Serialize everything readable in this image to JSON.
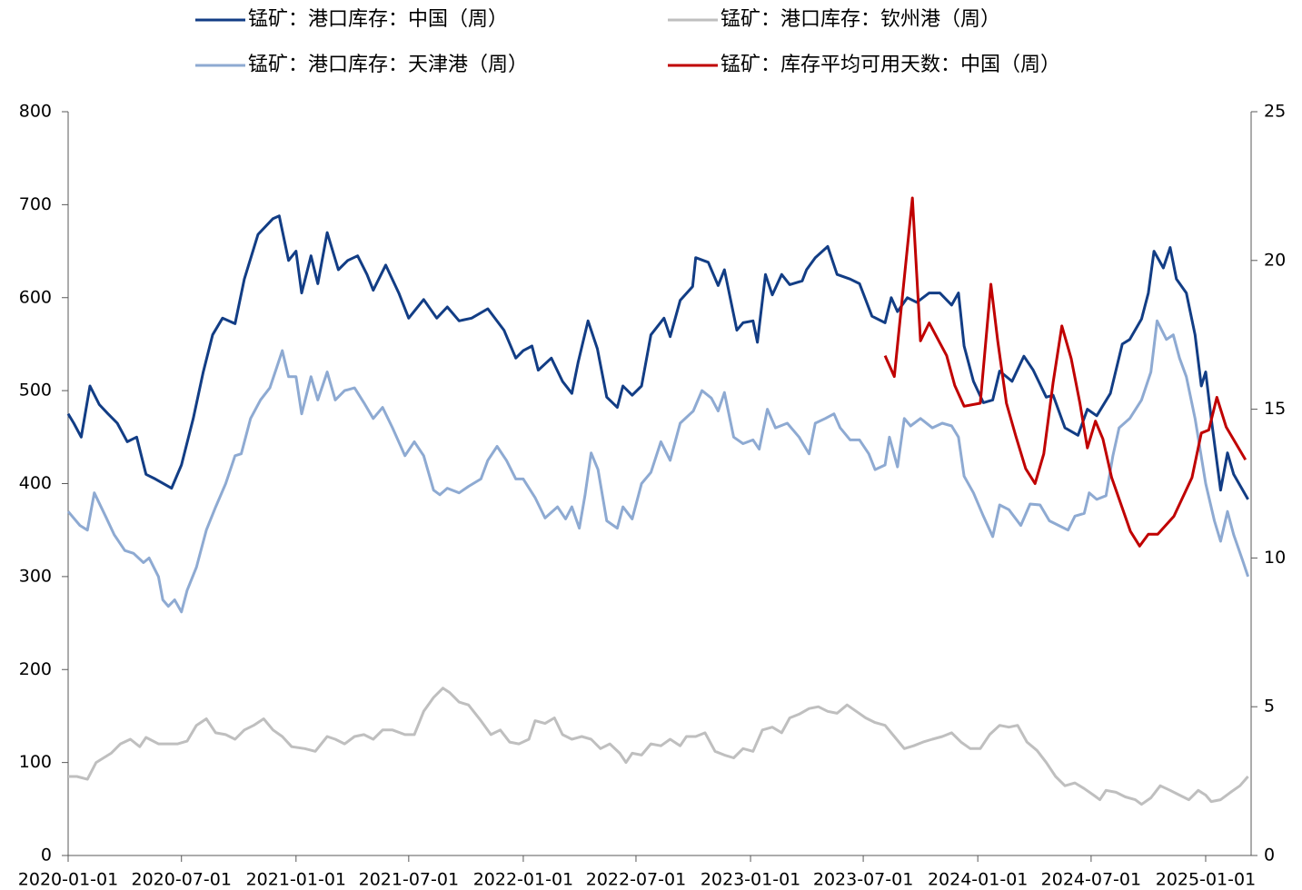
{
  "chart_data": {
    "type": "line",
    "xlim": [
      "2020-01-01",
      "2025-03-15"
    ],
    "xticks": [
      "2020-01-01",
      "2020-07-01",
      "2021-01-01",
      "2021-07-01",
      "2022-01-01",
      "2022-07-01",
      "2023-01-01",
      "2023-07-01",
      "2024-01-01",
      "2024-07-01",
      "2025-01-01"
    ],
    "ylim": [
      0,
      800
    ],
    "yticks": [
      0,
      100,
      200,
      300,
      400,
      500,
      600,
      700,
      800
    ],
    "y2lim": [
      0,
      25
    ],
    "y2ticks": [
      0,
      5,
      10,
      15,
      20,
      25
    ],
    "series": [
      {
        "name": "锰矿：港口库存：中国（周）",
        "color": "#123d85",
        "x": [
          "2020-01-01",
          "2020-01-10",
          "2020-01-22",
          "2020-02-05",
          "2020-02-20",
          "2020-03-05",
          "2020-03-20",
          "2020-04-05",
          "2020-04-20",
          "2020-05-05",
          "2020-05-20",
          "2020-06-15",
          "2020-07-01",
          "2020-07-20",
          "2020-08-05",
          "2020-08-20",
          "2020-09-05",
          "2020-09-25",
          "2020-10-10",
          "2020-11-01",
          "2020-11-25",
          "2020-12-05",
          "2020-12-20",
          "2021-01-01",
          "2021-01-10",
          "2021-01-25",
          "2021-02-05",
          "2021-02-20",
          "2021-03-10",
          "2021-03-25",
          "2021-04-10",
          "2021-04-25",
          "2021-05-05",
          "2021-05-25",
          "2021-06-15",
          "2021-07-01",
          "2021-07-25",
          "2021-08-15",
          "2021-09-01",
          "2021-09-20",
          "2021-10-10",
          "2021-11-05",
          "2021-12-01",
          "2021-12-20",
          "2022-01-01",
          "2022-01-15",
          "2022-01-25",
          "2022-02-15",
          "2022-03-05",
          "2022-03-20",
          "2022-03-30",
          "2022-04-15",
          "2022-04-30",
          "2022-05-15",
          "2022-06-01",
          "2022-06-10",
          "2022-06-25",
          "2022-07-10",
          "2022-07-25",
          "2022-08-15",
          "2022-08-25",
          "2022-09-10",
          "2022-09-30",
          "2022-10-05",
          "2022-10-25",
          "2022-11-10",
          "2022-11-20",
          "2022-12-10",
          "2022-12-20",
          "2023-01-05",
          "2023-01-12",
          "2023-01-25",
          "2023-02-05",
          "2023-02-20",
          "2023-03-05",
          "2023-03-25",
          "2023-04-01",
          "2023-04-15",
          "2023-05-05",
          "2023-05-20",
          "2023-06-10",
          "2023-06-25",
          "2023-07-15",
          "2023-08-05",
          "2023-08-15",
          "2023-08-25",
          "2023-09-10",
          "2023-09-25",
          "2023-10-15",
          "2023-11-01",
          "2023-11-20",
          "2023-12-01",
          "2023-12-10",
          "2023-12-25",
          "2024-01-10",
          "2024-01-25",
          "2024-02-05",
          "2024-02-25",
          "2024-03-15",
          "2024-03-30",
          "2024-04-20",
          "2024-05-01",
          "2024-05-20",
          "2024-06-10",
          "2024-06-25",
          "2024-07-10",
          "2024-08-01",
          "2024-08-20",
          "2024-09-01",
          "2024-09-20",
          "2024-10-01",
          "2024-10-10",
          "2024-10-25",
          "2024-11-05",
          "2024-11-15",
          "2024-12-01",
          "2024-12-15",
          "2024-12-25",
          "2025-01-01",
          "2025-01-10",
          "2025-01-25",
          "2025-02-05",
          "2025-02-15",
          "2025-03-10"
        ],
        "values": [
          475,
          465,
          450,
          505,
          485,
          475,
          465,
          445,
          450,
          410,
          405,
          395,
          420,
          470,
          520,
          560,
          578,
          572,
          620,
          668,
          685,
          688,
          640,
          650,
          605,
          645,
          615,
          670,
          630,
          640,
          645,
          625,
          608,
          635,
          605,
          578,
          598,
          578,
          590,
          575,
          578,
          588,
          565,
          535,
          543,
          548,
          522,
          535,
          510,
          497,
          530,
          575,
          545,
          493,
          482,
          505,
          495,
          505,
          560,
          578,
          558,
          597,
          612,
          643,
          638,
          613,
          630,
          565,
          573,
          575,
          552,
          625,
          603,
          625,
          614,
          618,
          630,
          643,
          655,
          625,
          620,
          615,
          580,
          573,
          600,
          585,
          600,
          595,
          605,
          605,
          592,
          605,
          548,
          510,
          487,
          490,
          521,
          510,
          537,
          522,
          493,
          495,
          460,
          452,
          480,
          473,
          497,
          550,
          555,
          577,
          605,
          650,
          632,
          654,
          620,
          605,
          560,
          505,
          520,
          470,
          393,
          433,
          410,
          383
        ]
      },
      {
        "name": "锰矿：港口库存：钦州港（周）",
        "color": "#bfbfbf",
        "x": [
          "2020-01-01",
          "2020-01-15",
          "2020-02-01",
          "2020-02-15",
          "2020-03-10",
          "2020-03-25",
          "2020-04-10",
          "2020-04-25",
          "2020-05-05",
          "2020-05-25",
          "2020-06-10",
          "2020-06-25",
          "2020-07-10",
          "2020-07-25",
          "2020-08-10",
          "2020-08-25",
          "2020-09-10",
          "2020-09-25",
          "2020-10-10",
          "2020-10-25",
          "2020-11-10",
          "2020-11-25",
          "2020-12-10",
          "2020-12-25",
          "2021-01-15",
          "2021-02-01",
          "2021-02-20",
          "2021-03-05",
          "2021-03-20",
          "2021-04-05",
          "2021-04-20",
          "2021-05-05",
          "2021-05-20",
          "2021-06-05",
          "2021-06-25",
          "2021-07-10",
          "2021-07-25",
          "2021-08-10",
          "2021-08-25",
          "2021-09-05",
          "2021-09-20",
          "2021-10-05",
          "2021-10-25",
          "2021-11-10",
          "2021-11-25",
          "2021-12-10",
          "2021-12-25",
          "2022-01-10",
          "2022-01-20",
          "2022-02-05",
          "2022-02-20",
          "2022-03-05",
          "2022-03-20",
          "2022-04-05",
          "2022-04-20",
          "2022-05-05",
          "2022-05-20",
          "2022-06-05",
          "2022-06-15",
          "2022-06-25",
          "2022-07-10",
          "2022-07-25",
          "2022-08-10",
          "2022-08-25",
          "2022-09-10",
          "2022-09-20",
          "2022-10-05",
          "2022-10-20",
          "2022-11-05",
          "2022-11-20",
          "2022-12-05",
          "2022-12-20",
          "2023-01-05",
          "2023-01-20",
          "2023-02-05",
          "2023-02-20",
          "2023-03-05",
          "2023-03-20",
          "2023-04-05",
          "2023-04-20",
          "2023-05-05",
          "2023-05-20",
          "2023-06-05",
          "2023-06-20",
          "2023-07-05",
          "2023-07-20",
          "2023-08-05",
          "2023-08-20",
          "2023-09-05",
          "2023-09-20",
          "2023-10-05",
          "2023-10-20",
          "2023-11-05",
          "2023-11-20",
          "2023-12-05",
          "2023-12-20",
          "2024-01-05",
          "2024-01-20",
          "2024-02-05",
          "2024-02-20",
          "2024-03-05",
          "2024-03-20",
          "2024-04-05",
          "2024-04-20",
          "2024-05-05",
          "2024-05-20",
          "2024-06-05",
          "2024-06-20",
          "2024-07-05",
          "2024-07-15",
          "2024-07-25",
          "2024-08-10",
          "2024-08-25",
          "2024-09-10",
          "2024-09-20",
          "2024-10-05",
          "2024-10-20",
          "2024-11-05",
          "2024-11-20",
          "2024-12-05",
          "2024-12-20",
          "2025-01-01",
          "2025-01-10",
          "2025-01-25",
          "2025-02-10",
          "2025-02-25",
          "2025-03-10"
        ],
        "values": [
          85,
          85,
          82,
          100,
          110,
          120,
          125,
          117,
          127,
          120,
          120,
          120,
          123,
          140,
          147,
          132,
          130,
          125,
          135,
          140,
          147,
          135,
          128,
          117,
          115,
          112,
          128,
          125,
          120,
          128,
          130,
          125,
          135,
          135,
          130,
          130,
          155,
          170,
          180,
          175,
          165,
          162,
          145,
          130,
          135,
          122,
          120,
          125,
          145,
          142,
          148,
          130,
          125,
          128,
          125,
          115,
          120,
          110,
          100,
          110,
          108,
          120,
          118,
          125,
          118,
          128,
          128,
          132,
          112,
          108,
          105,
          115,
          112,
          135,
          138,
          132,
          148,
          152,
          158,
          160,
          155,
          153,
          162,
          155,
          148,
          143,
          140,
          128,
          115,
          118,
          122,
          125,
          128,
          132,
          122,
          115,
          115,
          130,
          140,
          138,
          140,
          122,
          113,
          100,
          85,
          75,
          78,
          72,
          65,
          60,
          70,
          68,
          63,
          60,
          55,
          62,
          75,
          70,
          65,
          60,
          70,
          65,
          58,
          60,
          68,
          75,
          85
        ]
      },
      {
        "name": "锰矿：港口库存：天津港（周）",
        "color": "#8eaad2",
        "x": [
          "2020-01-01",
          "2020-01-20",
          "2020-02-01",
          "2020-02-12",
          "2020-03-01",
          "2020-03-15",
          "2020-04-01",
          "2020-04-15",
          "2020-05-01",
          "2020-05-10",
          "2020-05-25",
          "2020-06-01",
          "2020-06-10",
          "2020-06-20",
          "2020-07-01",
          "2020-07-10",
          "2020-07-25",
          "2020-08-10",
          "2020-08-25",
          "2020-09-10",
          "2020-09-25",
          "2020-10-05",
          "2020-10-20",
          "2020-11-05",
          "2020-11-20",
          "2020-12-01",
          "2020-12-10",
          "2020-12-20",
          "2021-01-01",
          "2021-01-10",
          "2021-01-25",
          "2021-02-05",
          "2021-02-20",
          "2021-03-05",
          "2021-03-20",
          "2021-04-05",
          "2021-04-20",
          "2021-05-05",
          "2021-05-20",
          "2021-06-05",
          "2021-06-25",
          "2021-07-10",
          "2021-07-25",
          "2021-08-10",
          "2021-08-20",
          "2021-09-01",
          "2021-09-20",
          "2021-10-05",
          "2021-10-25",
          "2021-11-05",
          "2021-11-20",
          "2021-12-05",
          "2021-12-20",
          "2022-01-01",
          "2022-01-20",
          "2022-02-05",
          "2022-02-25",
          "2022-03-10",
          "2022-03-20",
          "2022-04-01",
          "2022-04-10",
          "2022-04-20",
          "2022-05-01",
          "2022-05-15",
          "2022-06-01",
          "2022-06-10",
          "2022-06-25",
          "2022-07-10",
          "2022-07-25",
          "2022-08-10",
          "2022-08-25",
          "2022-09-10",
          "2022-10-01",
          "2022-10-15",
          "2022-10-30",
          "2022-11-10",
          "2022-11-20",
          "2022-12-05",
          "2022-12-20",
          "2023-01-05",
          "2023-01-15",
          "2023-01-28",
          "2023-02-10",
          "2023-03-01",
          "2023-03-20",
          "2023-04-05",
          "2023-04-15",
          "2023-05-01",
          "2023-05-15",
          "2023-05-25",
          "2023-06-10",
          "2023-06-25",
          "2023-07-10",
          "2023-07-20",
          "2023-08-05",
          "2023-08-12",
          "2023-08-25",
          "2023-09-05",
          "2023-09-15",
          "2023-10-01",
          "2023-10-20",
          "2023-11-05",
          "2023-11-20",
          "2023-12-01",
          "2023-12-10",
          "2023-12-25",
          "2024-01-10",
          "2024-01-25",
          "2024-02-05",
          "2024-02-20",
          "2024-03-10",
          "2024-03-25",
          "2024-04-10",
          "2024-04-25",
          "2024-05-10",
          "2024-05-25",
          "2024-06-05",
          "2024-06-20",
          "2024-06-28",
          "2024-07-10",
          "2024-07-25",
          "2024-08-05",
          "2024-08-15",
          "2024-09-01",
          "2024-09-20",
          "2024-10-05",
          "2024-10-15",
          "2024-10-30",
          "2024-11-10",
          "2024-11-20",
          "2024-12-01",
          "2024-12-15",
          "2025-01-01",
          "2025-01-15",
          "2025-01-25",
          "2025-02-05",
          "2025-02-15",
          "2025-03-01",
          "2025-03-10"
        ],
        "values": [
          370,
          355,
          350,
          390,
          365,
          345,
          328,
          325,
          315,
          320,
          300,
          275,
          268,
          275,
          262,
          285,
          310,
          350,
          375,
          400,
          430,
          432,
          470,
          490,
          503,
          525,
          543,
          515,
          515,
          475,
          515,
          490,
          520,
          490,
          500,
          503,
          487,
          470,
          482,
          460,
          430,
          445,
          430,
          393,
          388,
          395,
          390,
          397,
          405,
          425,
          440,
          425,
          405,
          405,
          385,
          363,
          375,
          362,
          375,
          352,
          387,
          433,
          415,
          360,
          352,
          375,
          362,
          400,
          412,
          445,
          425,
          465,
          478,
          500,
          492,
          478,
          498,
          450,
          443,
          447,
          437,
          480,
          460,
          465,
          450,
          432,
          465,
          470,
          475,
          460,
          447,
          447,
          432,
          415,
          420,
          450,
          418,
          470,
          462,
          470,
          460,
          465,
          462,
          450,
          408,
          390,
          365,
          343,
          377,
          372,
          355,
          378,
          377,
          360,
          355,
          350,
          365,
          368,
          390,
          383,
          387,
          430,
          460,
          470,
          490,
          520,
          575,
          555,
          560,
          535,
          515,
          470,
          400,
          360,
          338,
          370,
          345,
          318,
          300
        ]
      },
      {
        "name": "锰矿：库存平均可用天数：中国（周）",
        "color": "#c00000",
        "axis": "y2",
        "x": [
          "2023-08-05",
          "2023-08-20",
          "2023-09-18",
          "2023-10-01",
          "2023-10-15",
          "2023-11-12",
          "2023-11-25",
          "2023-12-10",
          "2024-01-05",
          "2024-01-22",
          "2024-02-02",
          "2024-02-16",
          "2024-03-02",
          "2024-03-18",
          "2024-04-02",
          "2024-04-16",
          "2024-05-01",
          "2024-05-15",
          "2024-05-30",
          "2024-06-13",
          "2024-06-25",
          "2024-07-08",
          "2024-07-20",
          "2024-08-03",
          "2024-08-18",
          "2024-09-02",
          "2024-09-17",
          "2024-10-01",
          "2024-10-16",
          "2024-11-11",
          "2024-12-10",
          "2024-12-25",
          "2025-01-06",
          "2025-01-19",
          "2025-02-03",
          "2025-03-06"
        ],
        "values": [
          16.8,
          16.1,
          22.1,
          17.3,
          17.9,
          16.8,
          15.8,
          15.1,
          15.2,
          19.2,
          17.3,
          15.2,
          14.1,
          13.0,
          12.5,
          13.5,
          15.9,
          17.8,
          16.7,
          15.2,
          13.7,
          14.6,
          14.0,
          12.7,
          11.8,
          10.9,
          10.4,
          10.8,
          10.8,
          11.4,
          12.7,
          14.2,
          14.3,
          15.4,
          14.4,
          13.3
        ]
      }
    ]
  }
}
